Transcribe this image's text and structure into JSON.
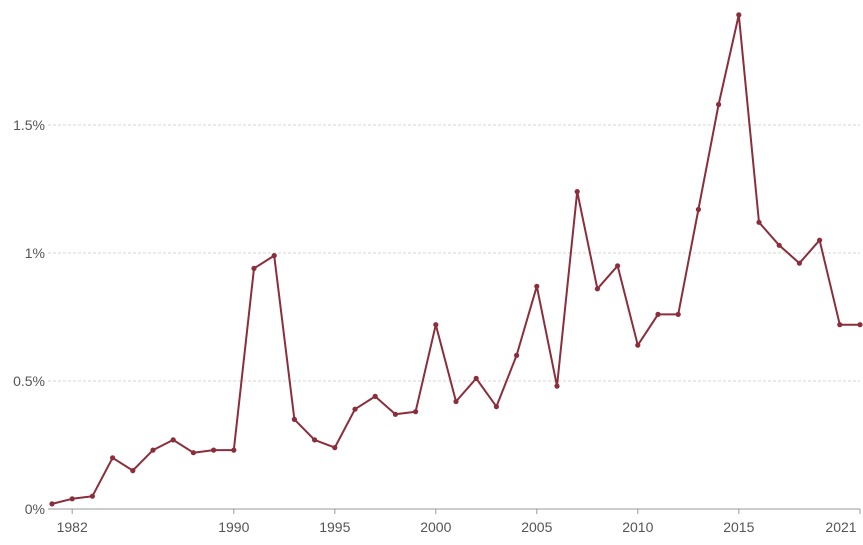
{
  "chart_data": {
    "type": "line",
    "title": "",
    "xlabel": "",
    "ylabel": "",
    "x": [
      1981,
      1982,
      1983,
      1984,
      1985,
      1986,
      1987,
      1988,
      1989,
      1990,
      1991,
      1992,
      1993,
      1994,
      1995,
      1996,
      1997,
      1998,
      1999,
      2000,
      2001,
      2002,
      2003,
      2004,
      2005,
      2006,
      2007,
      2008,
      2009,
      2010,
      2011,
      2012,
      2013,
      2014,
      2015,
      2016,
      2017,
      2018,
      2019,
      2020,
      2021
    ],
    "series": [
      {
        "values": [
          0.02,
          0.04,
          0.05,
          0.2,
          0.15,
          0.23,
          0.27,
          0.22,
          0.23,
          0.23,
          0.94,
          0.99,
          0.35,
          0.27,
          0.24,
          0.39,
          0.44,
          0.37,
          0.38,
          0.72,
          0.42,
          0.51,
          0.4,
          0.6,
          0.87,
          0.48,
          1.24,
          0.86,
          0.95,
          0.64,
          0.76,
          0.76,
          1.17,
          1.58,
          1.93,
          1.12,
          1.03,
          0.96,
          1.05,
          0.72,
          0.72
        ],
        "color": "#8b2e3c"
      }
    ],
    "xlim": [
      1981,
      2021
    ],
    "ylim": [
      0,
      1.95
    ],
    "x_ticks": [
      1982,
      1990,
      1995,
      2000,
      2005,
      2010,
      2015,
      2021
    ],
    "x_tick_labels": [
      "1982",
      "1990",
      "1995",
      "2000",
      "2005",
      "2010",
      "2015",
      "2021"
    ],
    "y_ticks": [
      0,
      0.5,
      1,
      1.5
    ],
    "y_tick_labels": [
      "0%",
      "0.5%",
      "1%",
      "1.5%"
    ],
    "grid": true,
    "line_color": "#8b2e3c"
  }
}
